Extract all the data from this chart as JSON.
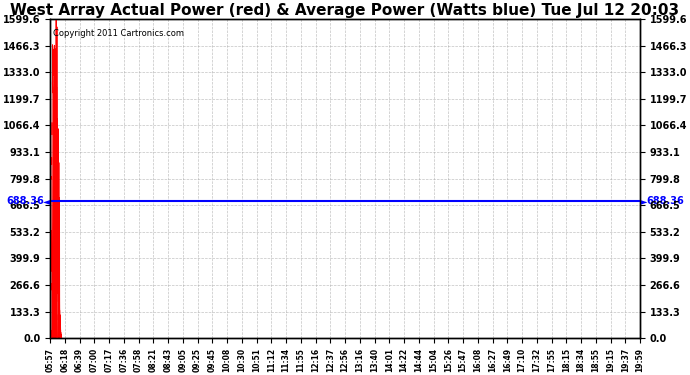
{
  "title": "West Array Actual Power (red) & Average Power (Watts blue) Tue Jul 12 20:03",
  "copyright": "Copyright 2011 Cartronics.com",
  "ymin": 0.0,
  "ymax": 1599.6,
  "yticks": [
    0.0,
    133.3,
    266.6,
    399.9,
    533.2,
    666.5,
    799.8,
    933.1,
    1066.4,
    1199.7,
    1333.0,
    1466.3,
    1599.6
  ],
  "avg_power": 688.36,
  "avg_label": "688.36",
  "bg_color": "#ffffff",
  "plot_bg_color": "#ffffff",
  "grid_color": "#aaaaaa",
  "red_color": "#ff0000",
  "blue_color": "#0000ff",
  "title_fontsize": 11,
  "xtick_labels": [
    "05:57",
    "06:18",
    "06:39",
    "07:00",
    "07:17",
    "07:36",
    "07:58",
    "08:21",
    "08:43",
    "09:05",
    "09:25",
    "09:45",
    "10:08",
    "10:30",
    "10:51",
    "11:12",
    "11:34",
    "11:55",
    "12:16",
    "12:37",
    "12:56",
    "13:16",
    "13:40",
    "14:01",
    "14:22",
    "14:44",
    "15:04",
    "15:26",
    "15:47",
    "16:08",
    "16:27",
    "16:49",
    "17:10",
    "17:32",
    "17:55",
    "18:15",
    "18:34",
    "18:55",
    "19:15",
    "19:37",
    "19:59"
  ],
  "n_xticks": 41
}
